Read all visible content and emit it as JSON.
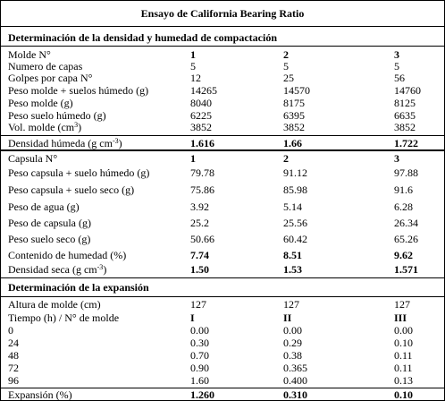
{
  "title": "Ensayo de California Bearing Ratio",
  "sections": [
    {
      "heading": "Determinación de la densidad y humedad de compactación",
      "rows": [
        [
          "Molde N°",
          "1",
          "2",
          "3"
        ],
        [
          "Numero de capas",
          "5",
          "5",
          "5"
        ],
        [
          "Golpes por capa N°",
          "12",
          "25",
          "56"
        ],
        [
          "Peso molde + suelos húmedo (g)",
          "14265",
          "14570",
          "14760"
        ],
        [
          "Peso molde (g)",
          "8040",
          "8175",
          "8125"
        ],
        [
          "Peso suelo húmedo (g)",
          "6225",
          "6395",
          "6635"
        ],
        [
          {
            "text": "Vol. molde (cm",
            "sup": "3",
            "tail": ")"
          },
          "3852",
          "3852",
          "3852"
        ],
        [
          {
            "text": "Densidad húmeda (g cm",
            "sup": "-3",
            "tail": ")"
          },
          "1.616",
          "1.66",
          "1.722"
        ],
        [
          "Capsula N°",
          "1",
          "2",
          "3"
        ],
        [
          "Peso capsula + suelo húmedo (g)",
          "79.78",
          "91.12",
          "97.88"
        ],
        [
          "Peso capsula + suelo seco (g)",
          "75.86",
          "85.98",
          "91.6"
        ],
        [
          "Peso de agua (g)",
          "3.92",
          "5.14",
          "6.28"
        ],
        [
          "Peso de capsula (g)",
          "25.2",
          "25.56",
          "26.34"
        ],
        [
          "Peso suelo seco (g)",
          "50.66",
          "60.42",
          "65.26"
        ],
        [
          "Contenido de humedad (%)",
          "7.74",
          "8.51",
          "9.62"
        ],
        [
          {
            "text": "Densidad seca (g cm",
            "sup": "-3",
            "tail": ")"
          },
          "1.50",
          "1.53",
          "1.571"
        ]
      ]
    },
    {
      "heading": "Determinación de la expansión",
      "rows": [
        [
          "Altura de molde (cm)",
          "127",
          "127",
          "127"
        ],
        [
          "Tiempo (h) / N° de molde",
          "I",
          "II",
          "III"
        ],
        [
          "0",
          "0.00",
          "0.00",
          "0.00"
        ],
        [
          "24",
          "0.30",
          "0.29",
          "0.10"
        ],
        [
          "48",
          "0.70",
          "0.38",
          "0.11"
        ],
        [
          "72",
          "0.90",
          "0.365",
          "0.11"
        ],
        [
          "96",
          "1.60",
          "0.400",
          "0.13"
        ],
        [
          "Expansión (%)",
          "1.260",
          "0.310",
          "0.10"
        ]
      ]
    }
  ]
}
